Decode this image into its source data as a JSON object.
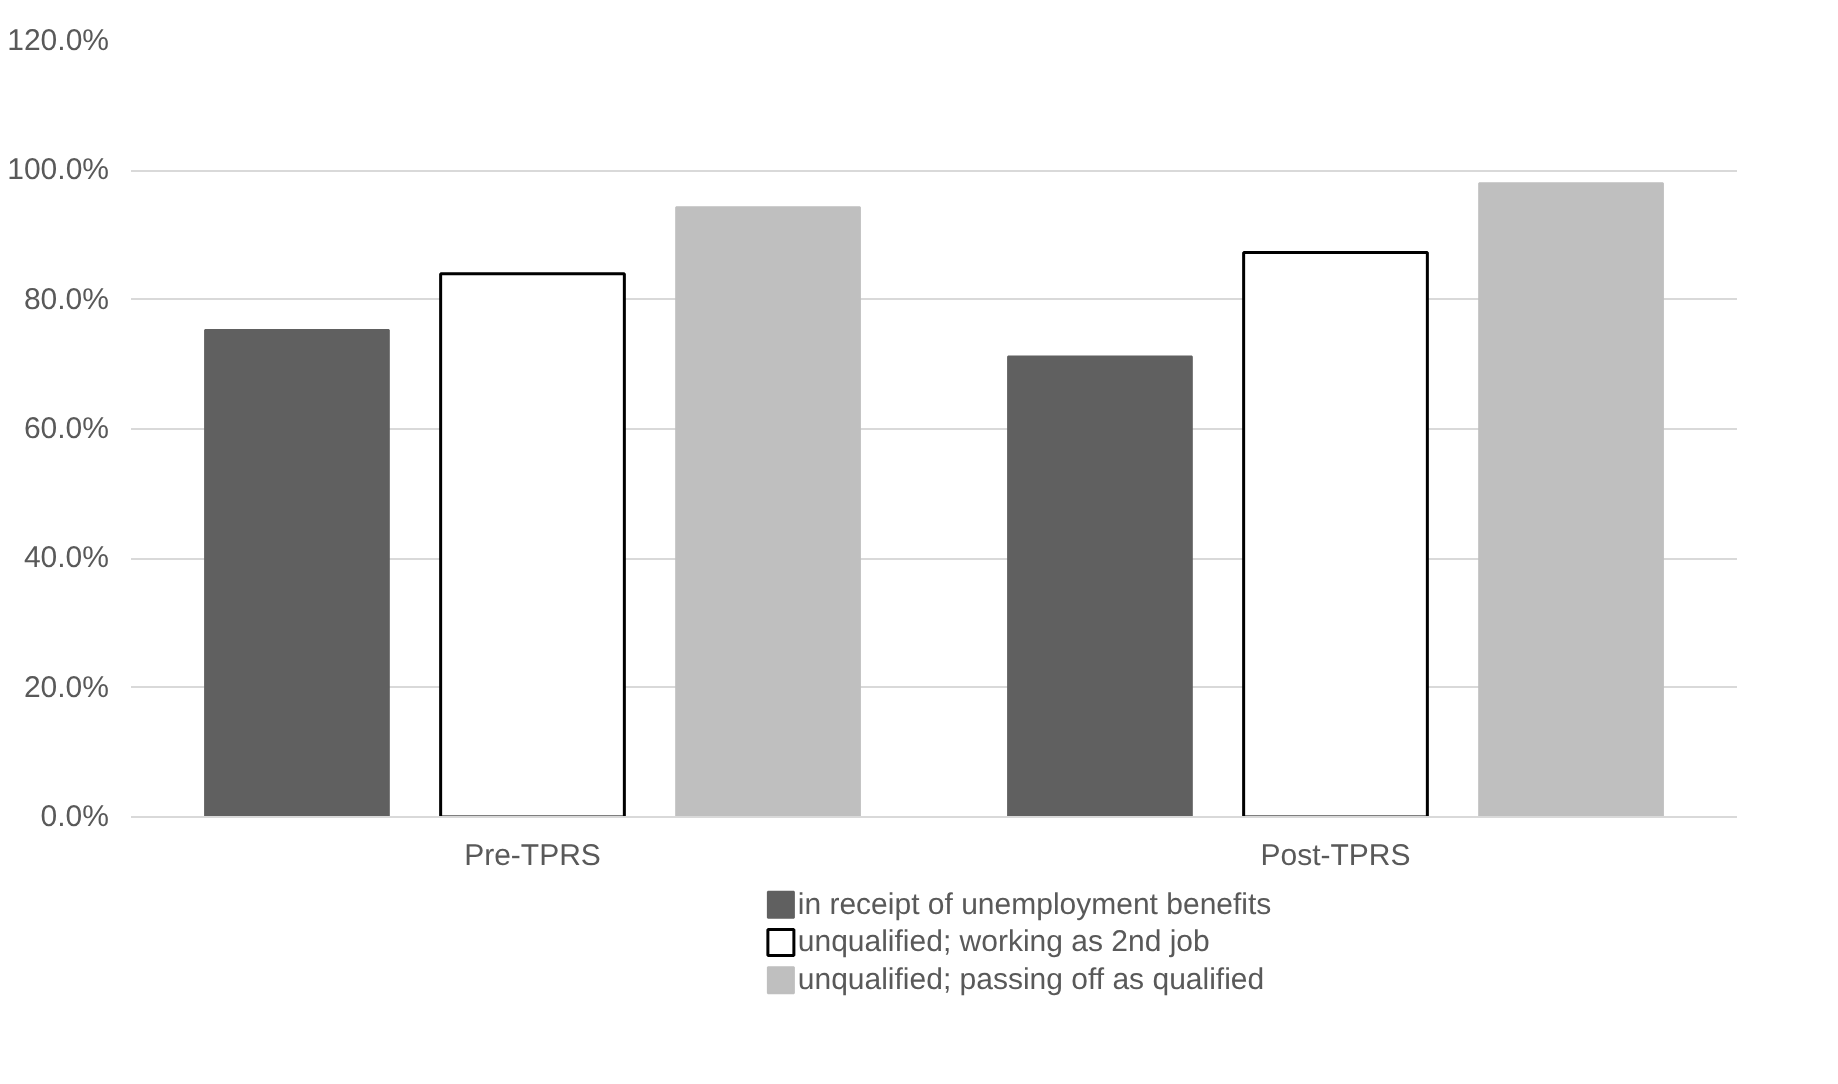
{
  "chart_data": {
    "type": "bar",
    "categories": [
      "Pre-TPRS",
      "Post-TPRS"
    ],
    "series": [
      {
        "name": "in receipt of unemployment benefits",
        "color": "#606060",
        "values": [
          75.3,
          71.2
        ]
      },
      {
        "name": "unqualified; working as 2nd job",
        "color": "#ffffff",
        "values": [
          84.0,
          87.3
        ]
      },
      {
        "name": "unqualified; passing off as qualified",
        "color": "#bfbfbf",
        "values": [
          94.3,
          98.0
        ]
      }
    ],
    "ylim": [
      0,
      120
    ],
    "yticks": [
      {
        "value": 0,
        "label": "0.0%"
      },
      {
        "value": 20,
        "label": "20.0%"
      },
      {
        "value": 40,
        "label": "40.0%"
      },
      {
        "value": 60,
        "label": "60.0%"
      },
      {
        "value": 80,
        "label": "80.0%"
      },
      {
        "value": 100,
        "label": "100.0%"
      },
      {
        "value": 120,
        "label": "120.0%"
      }
    ],
    "grid": "y",
    "legend": "bottom"
  }
}
